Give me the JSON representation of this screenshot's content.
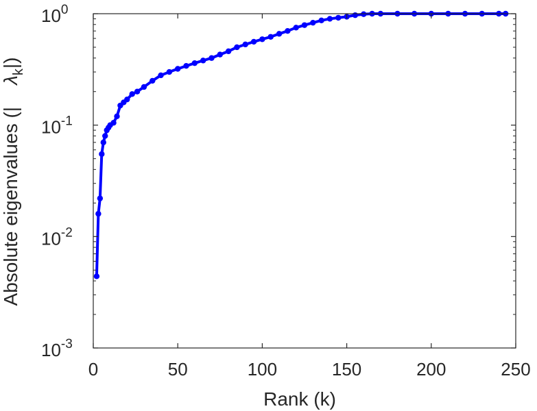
{
  "chart_data": {
    "type": "line",
    "title": "",
    "xlabel": "Rank (k)",
    "ylabel": "Absolute eigenvalues (|     λ_k|)",
    "ylabel_parts": {
      "prefix": "Absolute eigenvalues (|",
      "symbol": "λ",
      "subscript": "k",
      "suffix": "|)"
    },
    "xlim": [
      0,
      250
    ],
    "ylim": [
      0.001,
      1
    ],
    "yscale": "log",
    "grid": false,
    "legend": "none",
    "x_ticks": [
      0,
      50,
      100,
      150,
      200,
      250
    ],
    "x_tick_labels": [
      "0",
      "50",
      "100",
      "150",
      "200",
      "250"
    ],
    "y_ticks": [
      {
        "value": 0.001,
        "base": "10",
        "exp": "-3"
      },
      {
        "value": 0.01,
        "base": "10",
        "exp": "-2"
      },
      {
        "value": 0.1,
        "base": "10",
        "exp": "-1"
      },
      {
        "value": 1,
        "base": "10",
        "exp": "0"
      }
    ],
    "series": [
      {
        "color": "#0000ff",
        "marker": "circle",
        "x": [
          2,
          3,
          4,
          5,
          6,
          7,
          8,
          9,
          10,
          12,
          14,
          16,
          18,
          20,
          23,
          26,
          30,
          35,
          40,
          45,
          50,
          55,
          60,
          65,
          70,
          75,
          80,
          85,
          90,
          95,
          100,
          105,
          110,
          115,
          120,
          125,
          130,
          135,
          140,
          145,
          150,
          155,
          160,
          165,
          170,
          180,
          190,
          200,
          210,
          220,
          230,
          240,
          244
        ],
        "y": [
          0.0044,
          0.016,
          0.022,
          0.055,
          0.07,
          0.08,
          0.09,
          0.095,
          0.1,
          0.105,
          0.12,
          0.15,
          0.16,
          0.17,
          0.19,
          0.2,
          0.22,
          0.25,
          0.28,
          0.3,
          0.32,
          0.34,
          0.36,
          0.38,
          0.4,
          0.43,
          0.46,
          0.5,
          0.53,
          0.56,
          0.59,
          0.62,
          0.66,
          0.7,
          0.75,
          0.79,
          0.83,
          0.87,
          0.9,
          0.92,
          0.94,
          0.97,
          0.99,
          1.0,
          1.0,
          1.0,
          1.0,
          1.0,
          1.0,
          1.0,
          1.0,
          1.0,
          1.0
        ]
      }
    ]
  }
}
